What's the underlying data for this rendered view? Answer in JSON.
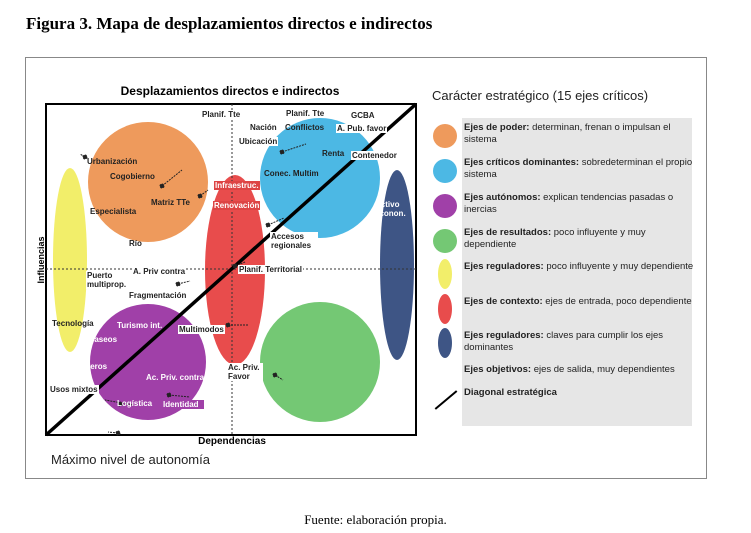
{
  "caption": "Figura 3. Mapa de desplazamientos directos e indirectos",
  "source": "Fuente: elaboración propia.",
  "diagram": {
    "title": "Desplazamientos directos e indirectos",
    "x_axis": "Dependencias",
    "y_axis": "Influencias",
    "corner_note": "Máximo nivel de autonomía",
    "labels": {
      "planif_tte_1": "Planif. Tte",
      "planif_tte_2": "Planif. Tte",
      "gcba": "GCBA",
      "nacion": "Nación",
      "conflictos": "Conflictos",
      "a_pub_favor": "A. Pub. favor",
      "ubicacion": "Ubicación",
      "renta": "Renta",
      "contenedor": "Contenedor",
      "urbanizacion": "Urbanización",
      "cogobierno": "Cogobierno",
      "conec_multim": "Conec. Multim",
      "infraestruc": "Infraestruc.",
      "matriz_tte": "Matriz TTe",
      "renovacion": "Renovación",
      "activo_econ": "Activo econon.",
      "especialista": "Especialista",
      "accesos_regionales": "Accesos regionales",
      "rio": "Río",
      "planif_territorial": "Planif. Territorial",
      "a_priv_contra": "A. Priv contra",
      "puerto_multiprop": "Puerto multiprop.",
      "fragmentacion": "Fragmentación",
      "tecnologia": "Tecnología",
      "turismo_int": "Turismo int.",
      "multimodos": "Multimodos",
      "paseos": "Paseos",
      "cruceros": "Cruceros",
      "ac_priv_contra": "Ac. Priv. contra",
      "ac_priv_favor": "Ac. Priv. Favor",
      "usos_mixtos": "Usos mixtos",
      "logistica": "Logística",
      "identidad": "Identidad"
    },
    "colors": {
      "poder": "#ee9a5c",
      "criticos": "#4cb8e4",
      "autonomos": "#a040a8",
      "resultados": "#74c874",
      "reguladores_y": "#f2ee6a",
      "contexto": "#e84c4c",
      "reguladores_n": "#3e5585"
    }
  },
  "legend": {
    "title": "Carácter estratégico (15 ejes críticos)",
    "items": [
      {
        "term": "Ejes de poder:",
        "desc": " determinan, frenan o impulsan el sistema",
        "color": "#ee9a5c",
        "shape": "circle"
      },
      {
        "term": "Ejes críticos dominantes:",
        "desc": " sobredeterminan el propio sistema",
        "color": "#4cb8e4",
        "shape": "circle"
      },
      {
        "term": "Ejes autónomos:",
        "desc": " explican tendencias pasadas o inercias",
        "color": "#a040a8",
        "shape": "circle"
      },
      {
        "term": "Ejes de resultados:",
        "desc": " poco influyente y muy dependiente",
        "color": "#74c874",
        "shape": "circle"
      },
      {
        "term": "Ejes reguladores:",
        "desc": " poco influyente y  muy dependiente",
        "color": "#f2ee6a",
        "shape": "ellipse"
      },
      {
        "term": "Ejes de contexto:",
        "desc": " ejes de entrada, poco dependiente",
        "color": "#e84c4c",
        "shape": "ellipse"
      },
      {
        "term": "Ejes reguladores:",
        "desc": " claves para cumplir los ejes dominantes",
        "color": "#3e5585",
        "shape": "ellipse"
      },
      {
        "term": "Ejes objetivos:",
        "desc": " ejes de salida, muy dependientes",
        "color": "#3e5585",
        "shape": "none"
      },
      {
        "term": "Diagonal estratégica",
        "desc": "",
        "color": "#000000",
        "shape": "line"
      }
    ]
  }
}
